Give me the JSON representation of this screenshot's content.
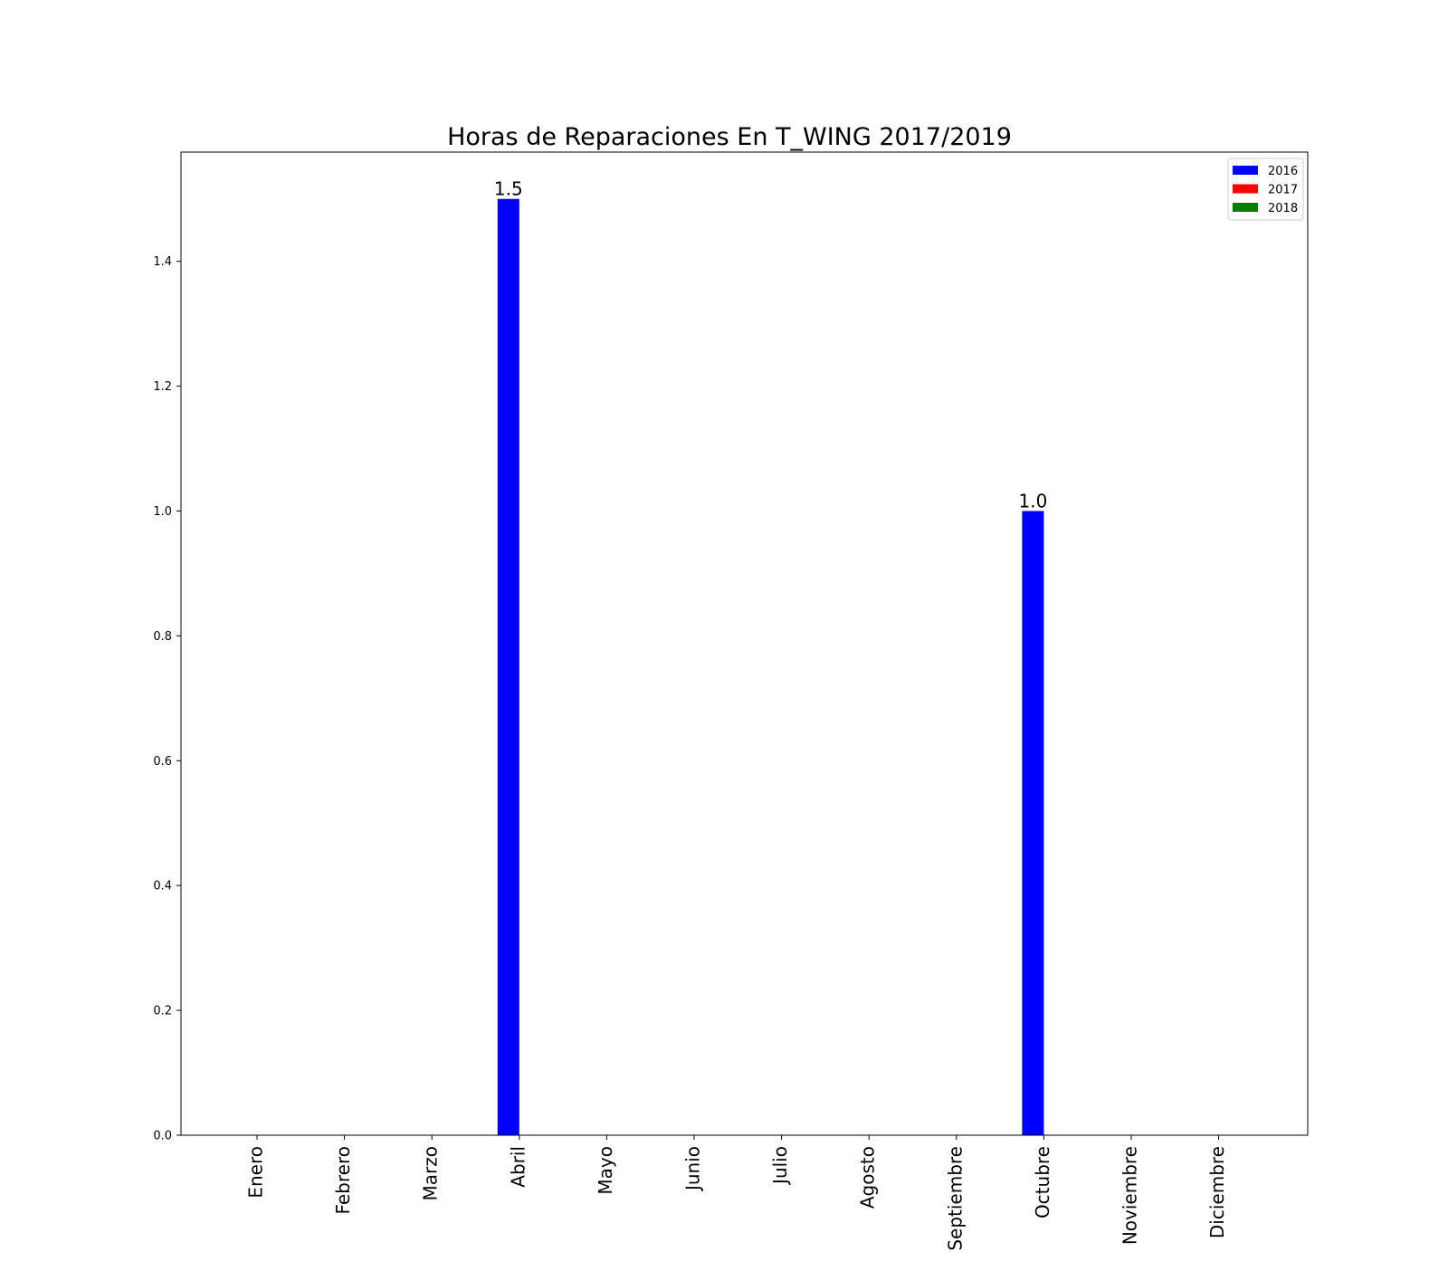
{
  "chart_data": {
    "type": "bar",
    "title": "Horas de Reparaciones En T_WING 2017/2019",
    "xlabel": "",
    "ylabel": "",
    "categories": [
      "Enero",
      "Febrero",
      "Marzo",
      "Abril",
      "Mayo",
      "Junio",
      "Julio",
      "Agosto",
      "Septiembre",
      "Octubre",
      "Noviembre",
      "Diciembre"
    ],
    "series": [
      {
        "name": "2016",
        "color": "#0000ff",
        "values": [
          0,
          0,
          0,
          1.5,
          0,
          0,
          0,
          0,
          0,
          1.0,
          0,
          0
        ],
        "labels": [
          "",
          "",
          "",
          "1.5",
          "",
          "",
          "",
          "",
          "",
          "1.0",
          "",
          ""
        ]
      },
      {
        "name": "2017",
        "color": "#ff0000",
        "values": [
          0,
          0,
          0,
          0,
          0,
          0,
          0,
          0,
          0,
          0,
          0,
          0
        ],
        "labels": [
          "",
          "",
          "",
          "",
          "",
          "",
          "",
          "",
          "",
          "",
          "",
          ""
        ]
      },
      {
        "name": "2018",
        "color": "#008000",
        "values": [
          0,
          0,
          0,
          0,
          0,
          0,
          0,
          0,
          0,
          0,
          0,
          0
        ],
        "labels": [
          "",
          "",
          "",
          "",
          "",
          "",
          "",
          "",
          "",
          "",
          "",
          ""
        ]
      }
    ],
    "ylim": [
      0,
      1.575
    ],
    "yticks": [
      "0.0",
      "0.2",
      "0.4",
      "0.6",
      "0.8",
      "1.0",
      "1.2",
      "1.4"
    ],
    "ytick_values": [
      0,
      0.2,
      0.4,
      0.6,
      0.8,
      1.0,
      1.2,
      1.4
    ],
    "grid": false,
    "legend_position": "top-right"
  }
}
